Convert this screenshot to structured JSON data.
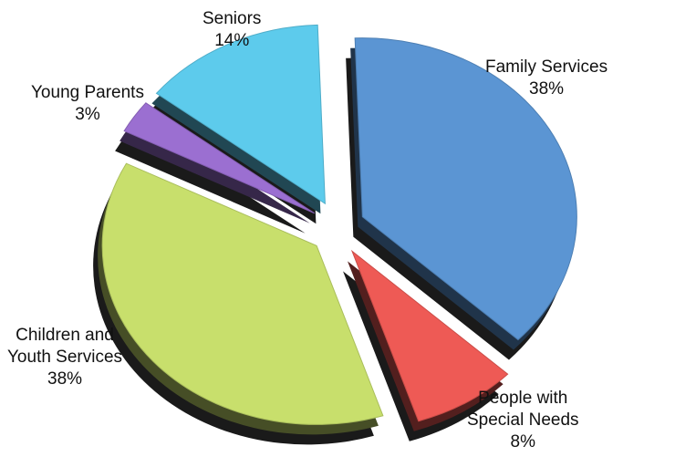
{
  "chart_data": {
    "type": "pie",
    "title": "",
    "slices": [
      {
        "label_lines": [
          "Family Services"
        ],
        "percent_label": "38%",
        "value": 38,
        "color": "#5b95d3"
      },
      {
        "label_lines": [
          "People with",
          "Special Needs"
        ],
        "percent_label": "8%",
        "value": 8,
        "color": "#ee5a55"
      },
      {
        "label_lines": [
          "Children and",
          "Youth Services"
        ],
        "percent_label": "38%",
        "value": 38,
        "color": "#c8df6c"
      },
      {
        "label_lines": [
          "Young Parents"
        ],
        "percent_label": "3%",
        "value": 3,
        "color": "#9b6fd1"
      },
      {
        "label_lines": [
          "Seniors"
        ],
        "percent_label": "14%",
        "value": 14,
        "color": "#5dcbec"
      }
    ],
    "exploded": true,
    "style": "3d",
    "legend": "none"
  }
}
